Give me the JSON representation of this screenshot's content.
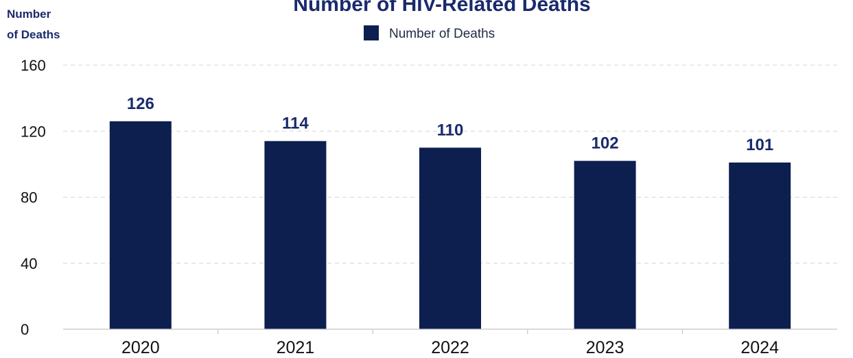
{
  "chart_data": {
    "type": "bar",
    "title": "Number of HIV-Related Deaths",
    "ylabel": "Number of Deaths",
    "ylabel_lines": [
      "Number",
      "of Deaths"
    ],
    "xlabel": "",
    "categories": [
      "2020",
      "2021",
      "2022",
      "2023",
      "2024"
    ],
    "series": [
      {
        "name": "Number of Deaths",
        "values": [
          126,
          114,
          110,
          102,
          101
        ],
        "color": "#0d1f4f"
      }
    ],
    "data_labels": [
      "126",
      "114",
      "110",
      "102",
      "101"
    ],
    "ylim": [
      0,
      160
    ],
    "yticks": [
      0,
      40,
      80,
      120,
      160
    ],
    "ytick_labels": [
      "0",
      "40",
      "80",
      "120",
      "160"
    ],
    "grid": true,
    "legend_position": "top-center"
  },
  "colors": {
    "bar": "#0d1f4f",
    "title": "#1a2a6c",
    "grid": "#d4d4d4"
  }
}
